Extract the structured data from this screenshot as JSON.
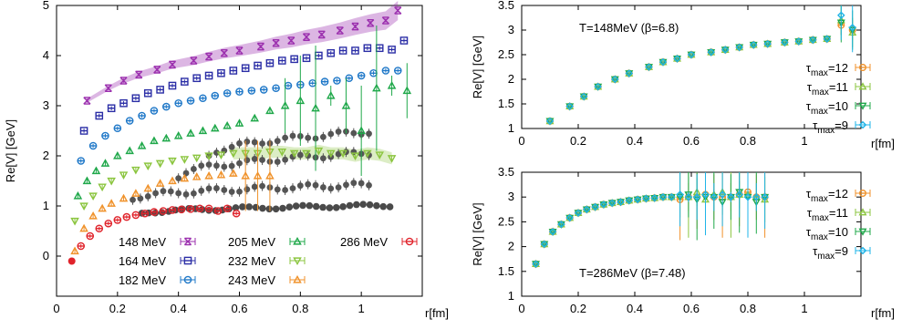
{
  "colors": {
    "148 MeV": "#9b2fae",
    "164 MeV": "#2b2ea6",
    "182 MeV": "#1f78c8",
    "205 MeV": "#1fa84a",
    "232 MeV": "#8bc53f",
    "243 MeV": "#f0922b",
    "286 MeV": "#e0232b",
    "gray": "#555555",
    "tau12": "#f0922b",
    "tau11": "#8bc53f",
    "tau10": "#1fa84a",
    "tau9": "#1fb4e8"
  },
  "chart_data": [
    {
      "type": "scatter",
      "ylabel": "Re[V] [GeV]",
      "xlabel": "r[fm]",
      "xlim": [
        0,
        1.2
      ],
      "ylim": [
        -0.8,
        5
      ],
      "xticks": [
        "0",
        "0.2",
        "0.4",
        "0.6",
        "0.8",
        "1"
      ],
      "yticks": [
        "0",
        "1",
        "2",
        "3",
        "4",
        "5"
      ],
      "legend_placement": "bottom",
      "series": [
        {
          "name": "148 MeV",
          "marker": "x",
          "x": [
            0.1,
            0.17,
            0.22,
            0.27,
            0.33,
            0.38,
            0.45,
            0.5,
            0.55,
            0.6,
            0.67,
            0.72,
            0.77,
            0.82,
            0.87,
            0.93,
            0.98,
            1.03,
            1.08,
            1.12
          ],
          "y": [
            3.1,
            3.35,
            3.5,
            3.62,
            3.72,
            3.82,
            3.9,
            3.98,
            4.05,
            4.1,
            4.18,
            4.25,
            4.3,
            4.37,
            4.42,
            4.5,
            4.58,
            4.65,
            4.7,
            4.9
          ]
        },
        {
          "name": "164 MeV",
          "marker": "square",
          "x": [
            0.09,
            0.14,
            0.18,
            0.22,
            0.26,
            0.3,
            0.34,
            0.38,
            0.42,
            0.46,
            0.5,
            0.54,
            0.58,
            0.62,
            0.66,
            0.7,
            0.74,
            0.78,
            0.82,
            0.86,
            0.9,
            0.94,
            0.98,
            1.02,
            1.06,
            1.1,
            1.14
          ],
          "y": [
            2.5,
            2.8,
            2.95,
            3.05,
            3.15,
            3.25,
            3.32,
            3.4,
            3.48,
            3.55,
            3.6,
            3.65,
            3.7,
            3.75,
            3.8,
            3.85,
            3.9,
            3.93,
            3.95,
            4.0,
            4.05,
            4.1,
            4.1,
            4.15,
            4.15,
            4.12,
            4.3
          ]
        },
        {
          "name": "182 MeV",
          "marker": "circle",
          "x": [
            0.08,
            0.12,
            0.16,
            0.2,
            0.24,
            0.28,
            0.32,
            0.36,
            0.4,
            0.44,
            0.48,
            0.52,
            0.56,
            0.6,
            0.64,
            0.68,
            0.72,
            0.76,
            0.8,
            0.84,
            0.88,
            0.92,
            0.96,
            1.0,
            1.04,
            1.08,
            1.12
          ],
          "y": [
            1.9,
            2.2,
            2.4,
            2.55,
            2.7,
            2.8,
            2.9,
            2.98,
            3.05,
            3.1,
            3.15,
            3.2,
            3.25,
            3.28,
            3.3,
            3.32,
            3.35,
            3.4,
            3.42,
            3.45,
            3.48,
            3.5,
            3.55,
            3.6,
            3.65,
            3.7,
            3.7
          ]
        },
        {
          "name": "205 MeV",
          "marker": "triangle",
          "x": [
            0.07,
            0.1,
            0.13,
            0.16,
            0.2,
            0.24,
            0.28,
            0.32,
            0.36,
            0.4,
            0.44,
            0.48,
            0.52,
            0.56,
            0.6,
            0.65,
            0.7,
            0.75,
            0.8,
            0.85,
            0.9,
            0.95,
            1.0,
            1.05,
            1.1,
            1.15
          ],
          "y": [
            1.2,
            1.5,
            1.7,
            1.85,
            2.0,
            2.1,
            2.2,
            2.3,
            2.35,
            2.4,
            2.45,
            2.5,
            2.55,
            2.6,
            2.65,
            2.75,
            2.9,
            3.0,
            3.1,
            2.95,
            3.2,
            3.0,
            2.5,
            3.35,
            3.4,
            3.3
          ]
        },
        {
          "name": "232 MeV",
          "marker": "invtriangle",
          "x": [
            0.06,
            0.09,
            0.12,
            0.15,
            0.18,
            0.22,
            0.26,
            0.3,
            0.34,
            0.38,
            0.42,
            0.46,
            0.5,
            0.54,
            0.58,
            0.62,
            0.66,
            0.7,
            0.74,
            0.78,
            0.82,
            0.86,
            0.9,
            0.94,
            0.98,
            1.02,
            1.06,
            1.1
          ],
          "y": [
            0.7,
            1.0,
            1.2,
            1.38,
            1.5,
            1.62,
            1.72,
            1.8,
            1.85,
            1.9,
            1.93,
            1.96,
            2.0,
            2.02,
            2.05,
            2.05,
            2.05,
            2.08,
            2.08,
            2.05,
            2.05,
            2.1,
            2.05,
            2.05,
            2.0,
            2.05,
            2.02,
            1.95
          ]
        },
        {
          "name": "243 MeV",
          "marker": "triangle",
          "x": [
            0.06,
            0.09,
            0.12,
            0.15,
            0.18,
            0.22,
            0.26,
            0.3,
            0.34,
            0.38,
            0.42,
            0.46,
            0.5,
            0.54,
            0.58,
            0.62,
            0.66,
            0.7
          ],
          "y": [
            0.1,
            0.55,
            0.8,
            0.95,
            1.05,
            1.15,
            1.25,
            1.35,
            1.45,
            1.5,
            1.55,
            1.58,
            1.6,
            1.62,
            1.65,
            1.6,
            1.6,
            1.6
          ]
        },
        {
          "name": "286 MeV",
          "marker": "circle",
          "x": [
            0.05,
            0.08,
            0.11,
            0.14,
            0.17,
            0.2,
            0.23,
            0.26,
            0.29,
            0.32,
            0.35,
            0.38,
            0.41,
            0.44,
            0.47,
            0.5,
            0.53,
            0.56,
            0.59
          ],
          "y": [
            -0.1,
            0.2,
            0.4,
            0.55,
            0.65,
            0.72,
            0.78,
            0.82,
            0.85,
            0.88,
            0.9,
            0.92,
            0.93,
            0.94,
            0.95,
            0.95,
            0.9,
            0.95,
            0.85
          ]
        }
      ]
    },
    {
      "type": "scatter",
      "annotation": "T=148MeV (β=6.8)",
      "ylabel": "Re[V] [GeV]",
      "xlabel": "r[fm]",
      "xlim": [
        0,
        1.2
      ],
      "ylim": [
        1,
        3.5
      ],
      "xticks": [
        "0",
        "0.2",
        "0.4",
        "0.6",
        "0.8",
        "1"
      ],
      "yticks": [
        "1",
        "1.5",
        "2",
        "2.5",
        "3",
        "3.5"
      ],
      "legend_placement": "bottom-right",
      "x": [
        0.1,
        0.17,
        0.22,
        0.27,
        0.33,
        0.38,
        0.45,
        0.5,
        0.55,
        0.6,
        0.67,
        0.72,
        0.77,
        0.82,
        0.87,
        0.93,
        0.98,
        1.03,
        1.08,
        1.13,
        1.17
      ],
      "series": [
        {
          "name": "τmax=12",
          "sub": "max",
          "label": "=12",
          "y": [
            1.15,
            1.45,
            1.65,
            1.85,
            2.0,
            2.12,
            2.25,
            2.35,
            2.42,
            2.5,
            2.55,
            2.6,
            2.65,
            2.7,
            2.72,
            2.75,
            2.77,
            2.8,
            2.82,
            3.1,
            3.0
          ]
        },
        {
          "name": "τmax=11",
          "sub": "max",
          "label": "=11",
          "y": [
            1.15,
            1.45,
            1.65,
            1.85,
            2.0,
            2.12,
            2.25,
            2.35,
            2.42,
            2.5,
            2.55,
            2.6,
            2.65,
            2.7,
            2.72,
            2.75,
            2.77,
            2.8,
            2.82,
            3.2,
            2.95
          ]
        },
        {
          "name": "τmax=10",
          "sub": "max",
          "label": "=10",
          "y": [
            1.15,
            1.45,
            1.65,
            1.85,
            2.0,
            2.12,
            2.25,
            2.35,
            2.42,
            2.5,
            2.55,
            2.6,
            2.65,
            2.7,
            2.72,
            2.75,
            2.77,
            2.8,
            2.82,
            3.15,
            3.0
          ]
        },
        {
          "name": "τmax=9",
          "sub": "max",
          "label": "=9",
          "y": [
            1.15,
            1.45,
            1.65,
            1.85,
            2.0,
            2.12,
            2.25,
            2.35,
            2.42,
            2.5,
            2.55,
            2.6,
            2.65,
            2.7,
            2.72,
            2.75,
            2.77,
            2.8,
            2.82,
            3.3,
            3.05
          ]
        }
      ]
    },
    {
      "type": "scatter",
      "annotation": "T=286MeV (β=7.48)",
      "ylabel": "Re[V] [GeV]",
      "xlabel": "r[fm]",
      "xlim": [
        0,
        1.2
      ],
      "ylim": [
        1,
        3.5
      ],
      "xticks": [
        "0",
        "0.2",
        "0.4",
        "0.6",
        "0.8",
        "1"
      ],
      "yticks": [
        "1",
        "1.5",
        "2",
        "2.5",
        "3",
        "3.5"
      ],
      "legend_placement": "top-right",
      "x": [
        0.05,
        0.08,
        0.11,
        0.14,
        0.17,
        0.2,
        0.23,
        0.26,
        0.29,
        0.32,
        0.35,
        0.38,
        0.41,
        0.44,
        0.47,
        0.5,
        0.53,
        0.56,
        0.59,
        0.62,
        0.65,
        0.68,
        0.71,
        0.74,
        0.77,
        0.8,
        0.83,
        0.86
      ],
      "series": [
        {
          "name": "τmax=12",
          "sub": "max",
          "label": "=12",
          "y": [
            1.65,
            2.05,
            2.3,
            2.45,
            2.58,
            2.68,
            2.75,
            2.8,
            2.85,
            2.88,
            2.9,
            2.93,
            2.95,
            2.97,
            2.98,
            3.0,
            3.0,
            2.95,
            3.0,
            3.0,
            3.05,
            3.0,
            3.0,
            3.0,
            3.05,
            3.1,
            3.0,
            3.0
          ]
        },
        {
          "name": "τmax=11",
          "sub": "max",
          "label": "=11",
          "y": [
            1.65,
            2.05,
            2.3,
            2.45,
            2.58,
            2.68,
            2.75,
            2.8,
            2.85,
            2.88,
            2.9,
            2.93,
            2.95,
            2.97,
            2.98,
            3.0,
            3.0,
            3.05,
            3.0,
            3.1,
            2.95,
            3.05,
            3.1,
            3.0,
            3.05,
            3.05,
            3.0,
            2.95
          ]
        },
        {
          "name": "τmax=10",
          "sub": "max",
          "label": "=10",
          "y": [
            1.65,
            2.05,
            2.3,
            2.45,
            2.58,
            2.68,
            2.75,
            2.8,
            2.85,
            2.88,
            2.9,
            2.93,
            2.95,
            2.97,
            2.98,
            3.0,
            3.0,
            3.0,
            3.05,
            2.95,
            3.0,
            3.0,
            2.9,
            3.0,
            3.1,
            3.0,
            2.9,
            3.0
          ]
        },
        {
          "name": "τmax=9",
          "sub": "max",
          "label": "=9",
          "y": [
            1.65,
            2.05,
            2.3,
            2.45,
            2.58,
            2.68,
            2.75,
            2.8,
            2.85,
            2.88,
            2.9,
            2.93,
            2.95,
            2.97,
            2.98,
            3.0,
            3.0,
            3.05,
            3.0,
            3.0,
            3.05,
            3.0,
            3.05,
            3.0,
            3.05,
            3.0,
            3.0,
            3.0
          ]
        }
      ]
    }
  ]
}
